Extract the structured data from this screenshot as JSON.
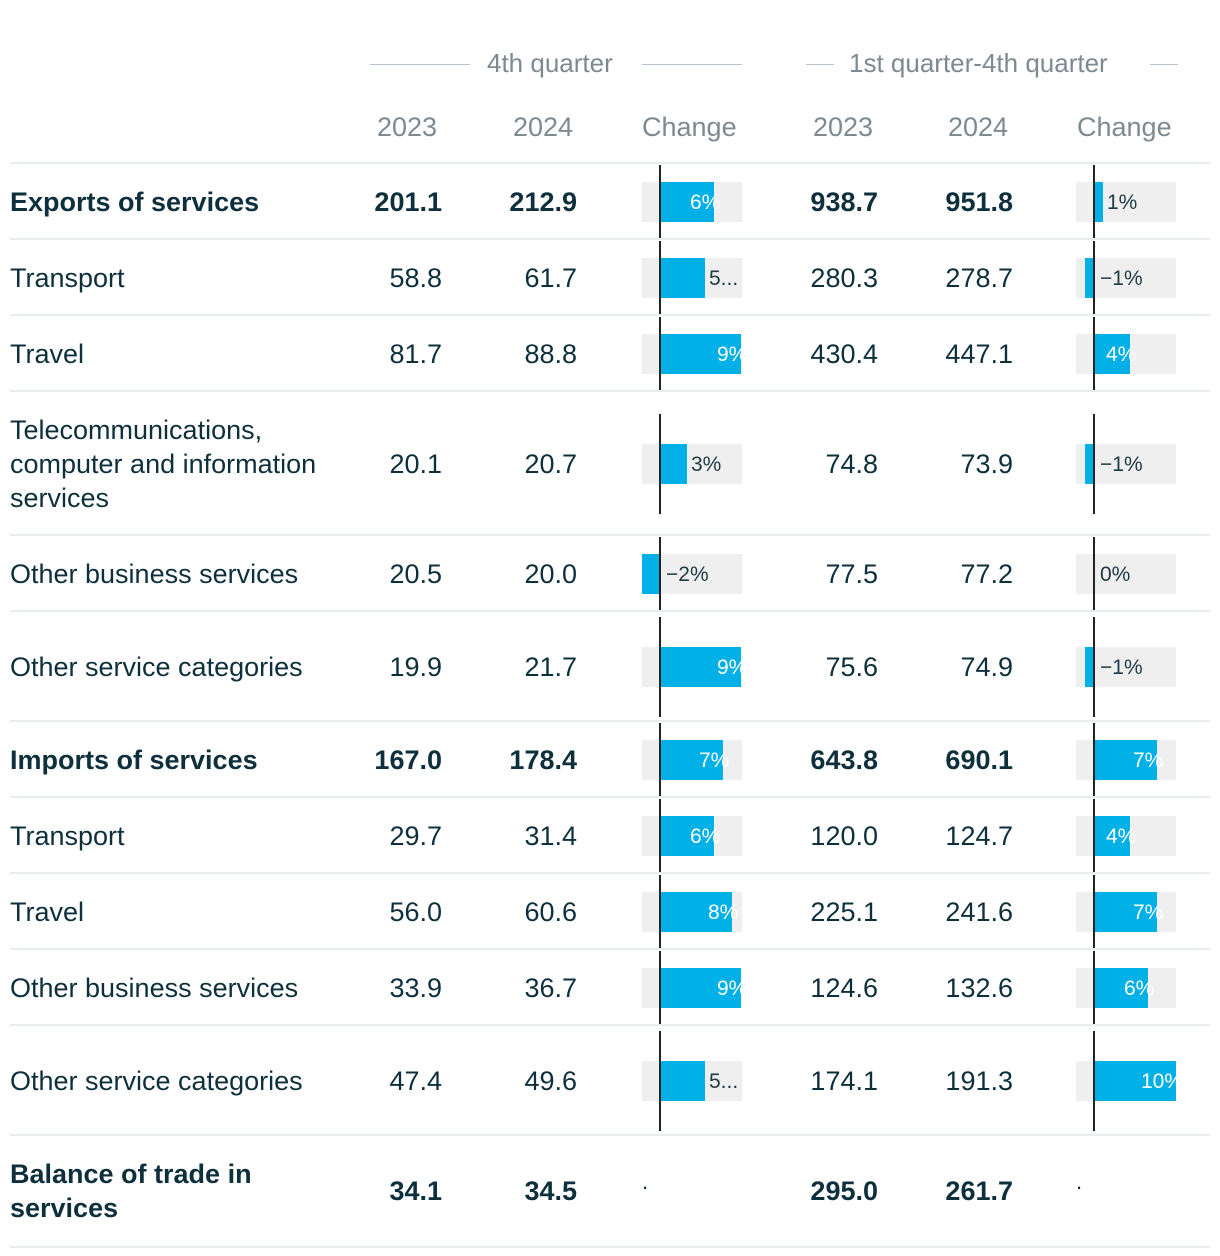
{
  "header": {
    "group1": "4th quarter",
    "group2": "1st quarter-4th quarter",
    "columns": [
      "2023",
      "2024",
      "Change",
      "2023",
      "2024",
      "Change"
    ]
  },
  "chart_data": {
    "type": "table",
    "change_axis_range_pct": [
      -2,
      9
    ],
    "rows": [
      {
        "label": "Exports of services",
        "bold": true,
        "q4_2023": "201.1",
        "q4_2024": "212.9",
        "q4_change": 6,
        "q4_change_label": "6%",
        "fy_2023": "938.7",
        "fy_2024": "951.8",
        "fy_change": 1,
        "fy_change_label": "1%"
      },
      {
        "label": "Transport",
        "bold": false,
        "q4_2023": "58.8",
        "q4_2024": "61.7",
        "q4_change": 5,
        "q4_change_label": "5...",
        "fy_2023": "280.3",
        "fy_2024": "278.7",
        "fy_change": -1,
        "fy_change_label": "−1%"
      },
      {
        "label": "Travel",
        "bold": false,
        "q4_2023": "81.7",
        "q4_2024": "88.8",
        "q4_change": 9,
        "q4_change_label": "9%",
        "fy_2023": "430.4",
        "fy_2024": "447.1",
        "fy_change": 4,
        "fy_change_label": "4%"
      },
      {
        "label": "Telecommunications, computer and information services",
        "bold": false,
        "q4_2023": "20.1",
        "q4_2024": "20.7",
        "q4_change": 3,
        "q4_change_label": "3%",
        "fy_2023": "74.8",
        "fy_2024": "73.9",
        "fy_change": -1,
        "fy_change_label": "−1%"
      },
      {
        "label": "Other business services",
        "bold": false,
        "q4_2023": "20.5",
        "q4_2024": "20.0",
        "q4_change": -2,
        "q4_change_label": "−2%",
        "fy_2023": "77.5",
        "fy_2024": "77.2",
        "fy_change": 0,
        "fy_change_label": "0%"
      },
      {
        "label": "Other service categories",
        "bold": false,
        "q4_2023": "19.9",
        "q4_2024": "21.7",
        "q4_change": 9,
        "q4_change_label": "9%",
        "fy_2023": "75.6",
        "fy_2024": "74.9",
        "fy_change": -1,
        "fy_change_label": "−1%"
      },
      {
        "label": "Imports of services",
        "bold": true,
        "q4_2023": "167.0",
        "q4_2024": "178.4",
        "q4_change": 7,
        "q4_change_label": "7%",
        "fy_2023": "643.8",
        "fy_2024": "690.1",
        "fy_change": 7,
        "fy_change_label": "7%"
      },
      {
        "label": "Transport",
        "bold": false,
        "q4_2023": "29.7",
        "q4_2024": "31.4",
        "q4_change": 6,
        "q4_change_label": "6%",
        "fy_2023": "120.0",
        "fy_2024": "124.7",
        "fy_change": 4,
        "fy_change_label": "4%"
      },
      {
        "label": "Travel",
        "bold": false,
        "q4_2023": "56.0",
        "q4_2024": "60.6",
        "q4_change": 8,
        "q4_change_label": "8%",
        "fy_2023": "225.1",
        "fy_2024": "241.6",
        "fy_change": 7,
        "fy_change_label": "7%"
      },
      {
        "label": "Other business services",
        "bold": false,
        "q4_2023": "33.9",
        "q4_2024": "36.7",
        "q4_change": 9,
        "q4_change_label": "9%",
        "fy_2023": "124.6",
        "fy_2024": "132.6",
        "fy_change": 6,
        "fy_change_label": "6%"
      },
      {
        "label": "Other service categories",
        "bold": false,
        "q4_2023": "47.4",
        "q4_2024": "49.6",
        "q4_change": 5,
        "q4_change_label": "5...",
        "fy_2023": "174.1",
        "fy_2024": "191.3",
        "fy_change": 10,
        "fy_change_label": "10%"
      },
      {
        "label": "Balance of trade in services",
        "bold": true,
        "q4_2023": "34.1",
        "q4_2024": "34.5",
        "q4_change": null,
        "q4_change_label": ".",
        "fy_2023": "295.0",
        "fy_2024": "261.7",
        "fy_change": null,
        "fy_change_label": "."
      }
    ]
  }
}
